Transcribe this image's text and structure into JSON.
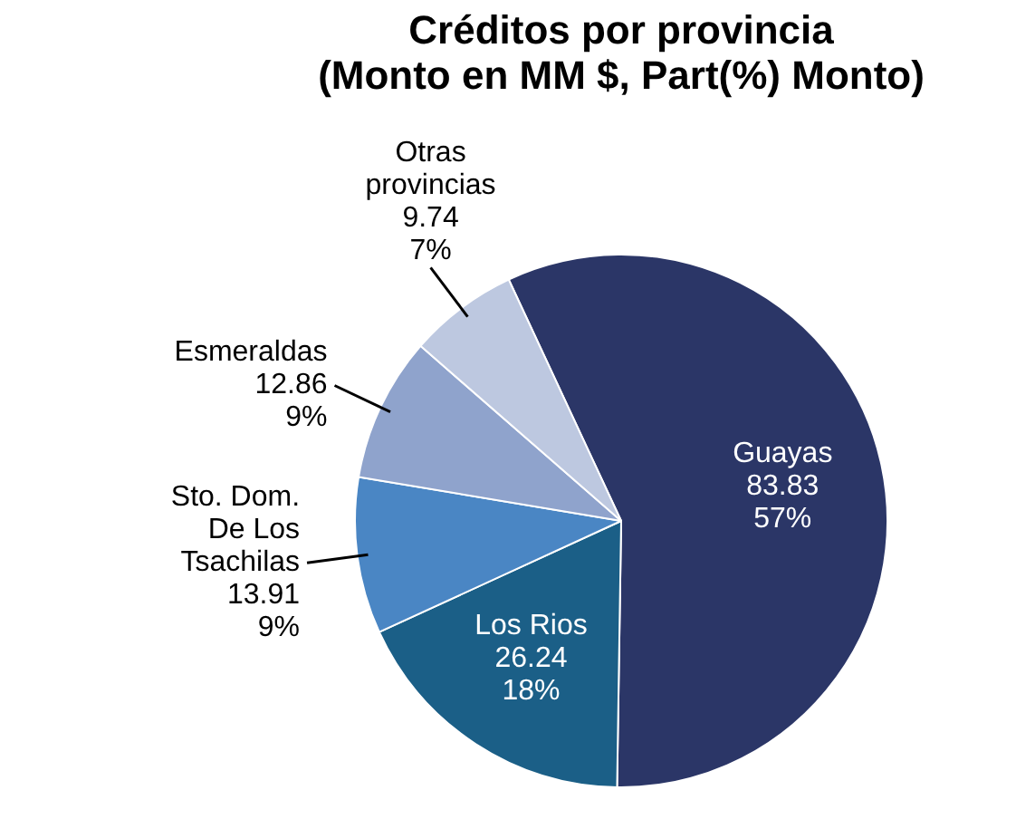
{
  "chart_data": {
    "type": "pie",
    "title": "Créditos por provincia\n(Monto en MM $, Part(%) Monto)",
    "categories": [
      "Guayas",
      "Los Rios",
      "Sto. Dom. De Los Tsachilas",
      "Esmeraldas",
      "Otras provincias"
    ],
    "values": [
      83.83,
      26.24,
      13.91,
      12.86,
      9.74
    ],
    "value_labels": [
      "83.83\n57%",
      "26.24\n18%",
      "13.91\n9%",
      "12.86\n9%",
      "9.74\n7%"
    ],
    "colors": [
      "#2b3667",
      "#1b5f87",
      "#4a86c4",
      "#8fa3cc",
      "#bdc8e0"
    ]
  }
}
